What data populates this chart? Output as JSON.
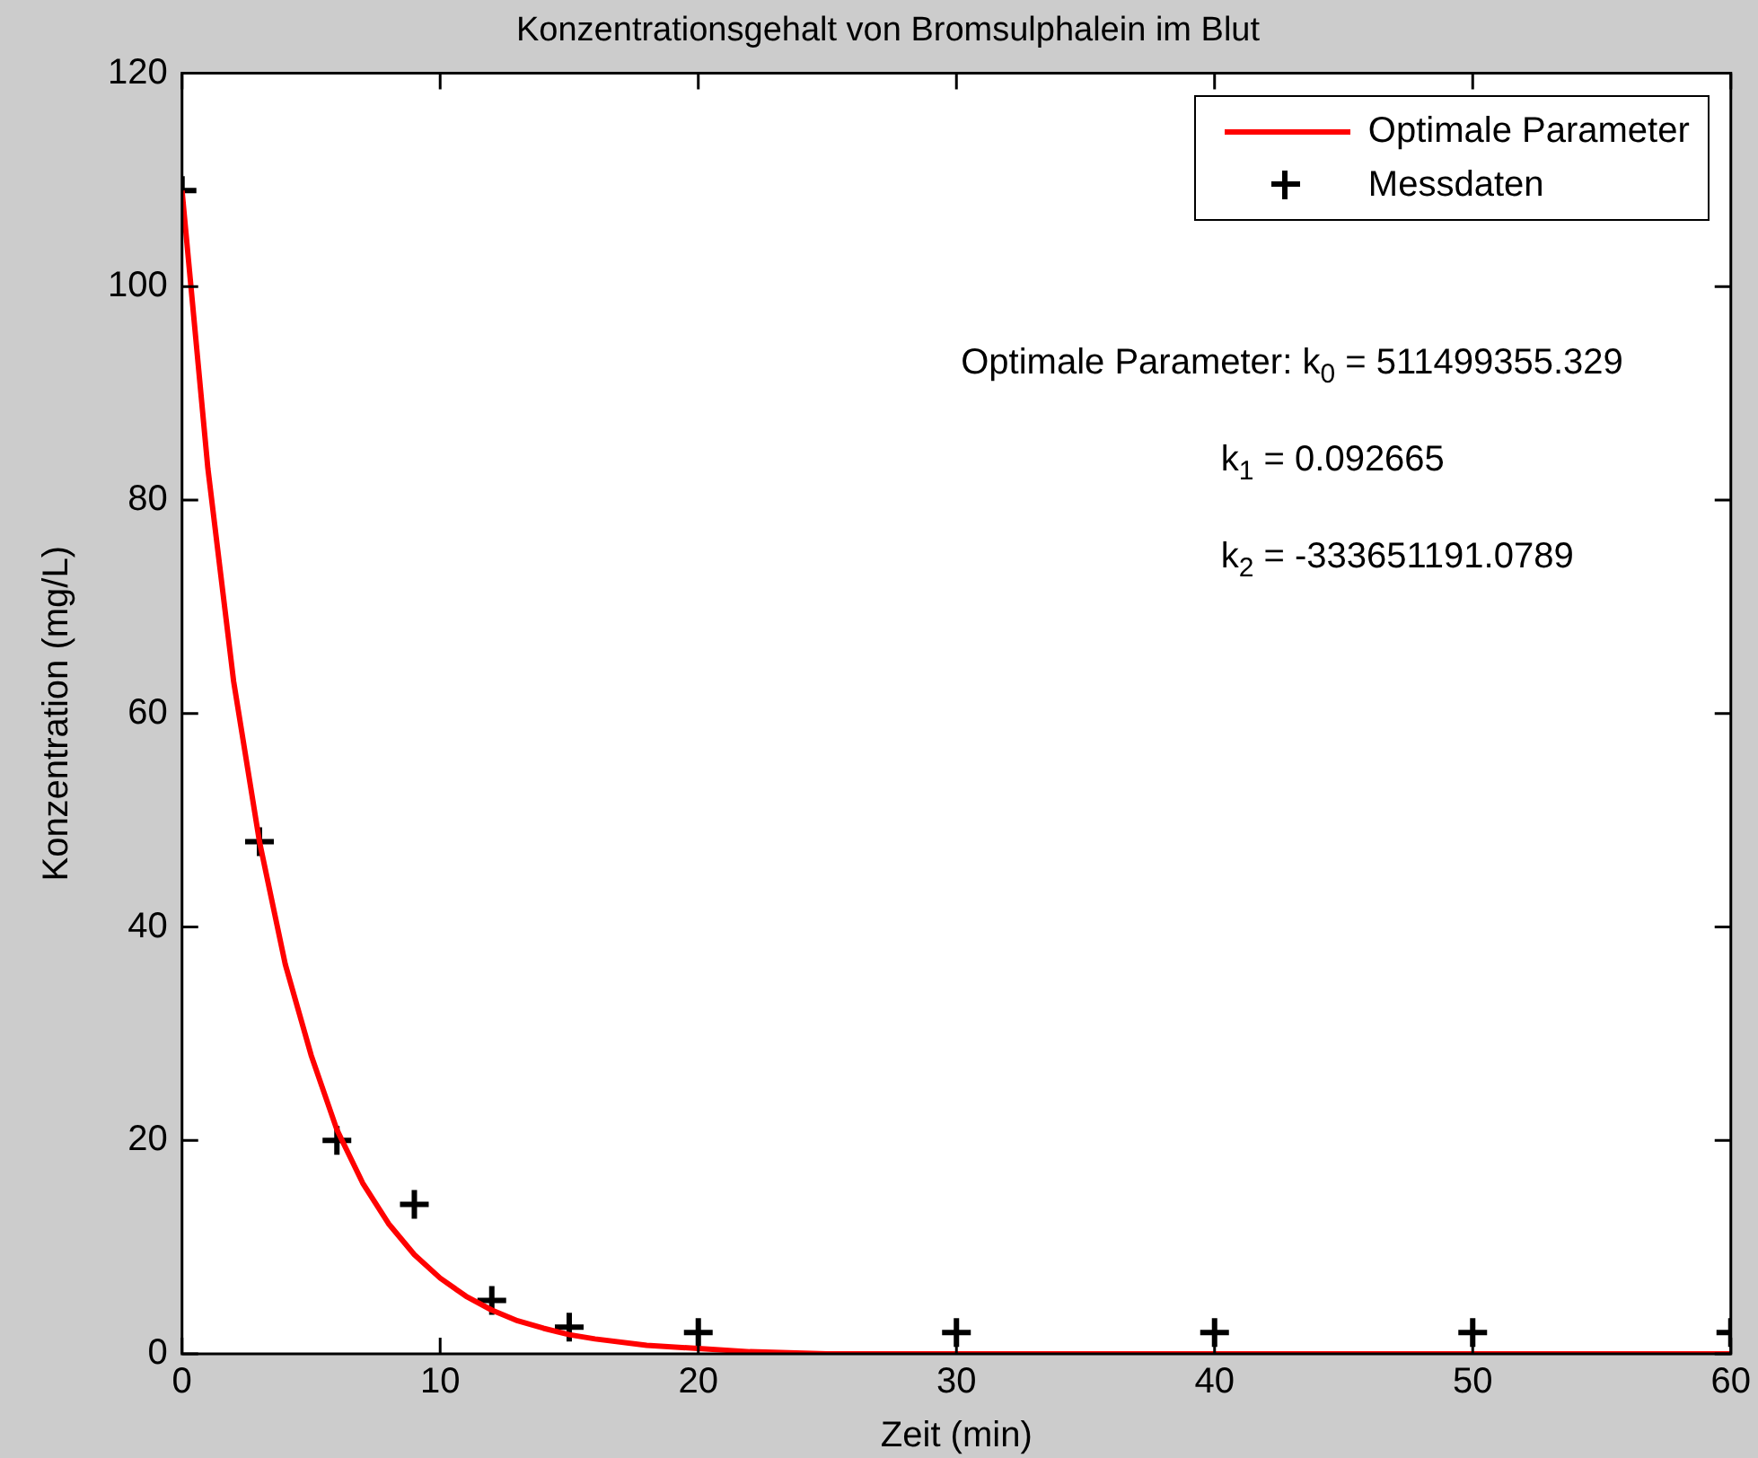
{
  "chart_data": {
    "type": "line",
    "title": "Konzentrationsgehalt von Bromsulphalein im Blut",
    "xlabel": "Zeit (min)",
    "ylabel": "Konzentration (mg/L)",
    "xlim": [
      0,
      60
    ],
    "xticks": [
      0,
      10,
      20,
      30,
      40,
      50,
      60
    ],
    "ylim": [
      0,
      120
    ],
    "yticks": [
      0,
      20,
      40,
      60,
      80,
      100,
      120
    ],
    "grid": false,
    "legend": "top right",
    "series": [
      {
        "name": "Optimale Parameter",
        "type": "line",
        "color": "#ff0000",
        "marker": "none",
        "line_style": "solid",
        "x": [
          0,
          1,
          2,
          3,
          4,
          5,
          6,
          7,
          8,
          9,
          10,
          11,
          12,
          13,
          14,
          15,
          16,
          18,
          20,
          22,
          25,
          60
        ],
        "values": [
          109,
          83,
          63,
          48,
          36.5,
          28,
          21,
          16,
          12.2,
          9.3,
          7.1,
          5.4,
          4.1,
          3.1,
          2.4,
          1.8,
          1.4,
          0.8,
          0.5,
          0.2,
          0,
          0
        ]
      },
      {
        "name": "Messdaten",
        "type": "scatter",
        "color": "#000000",
        "marker": "cross",
        "x": [
          0,
          3,
          6,
          9,
          12,
          15,
          20,
          30,
          40,
          50,
          60
        ],
        "values": [
          109,
          48,
          20,
          14,
          5,
          2.5,
          2,
          2,
          2,
          2,
          2
        ]
      }
    ],
    "annotations": [
      "Optimale Parameter: k$_{0}$ = 511499355.329",
      "k$_{1}$ = 0.092665",
      "k$_{2}$ = -333651191.0789"
    ]
  }
}
